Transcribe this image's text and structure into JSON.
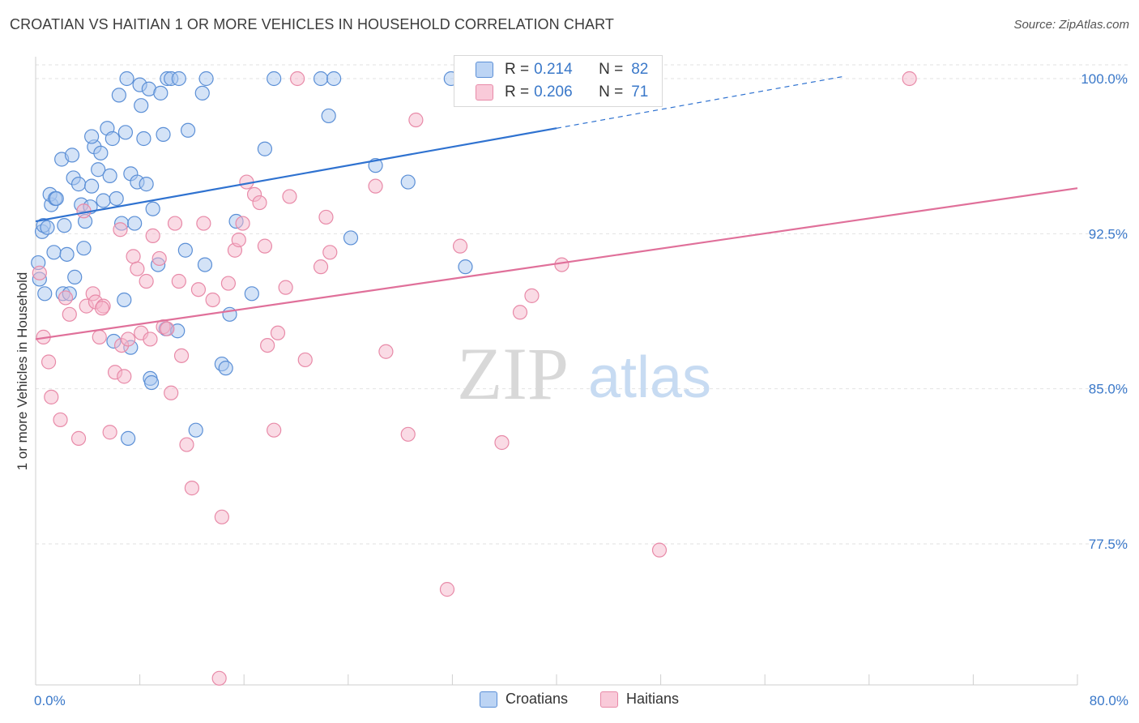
{
  "title": "CROATIAN VS HAITIAN 1 OR MORE VEHICLES IN HOUSEHOLD CORRELATION CHART",
  "source": "Source: ZipAtlas.com",
  "watermark": {
    "zip": "ZIP",
    "atlas": "atlas"
  },
  "legend": {
    "rows": [
      {
        "r_label": "R =",
        "r_value": "0.214",
        "n_label": "N =",
        "n_value": "82"
      },
      {
        "r_label": "R =",
        "r_value": "0.206",
        "n_label": "N =",
        "n_value": "71"
      }
    ]
  },
  "colors": {
    "croatian_fill": "#a9c8f0",
    "croatian_stroke": "#5b8fd6",
    "croatian_line": "#2f72d0",
    "haitian_fill": "#f6b8cc",
    "haitian_stroke": "#e88aa8",
    "haitian_line": "#e0709a",
    "tick_label": "#3a78c9",
    "grid": "#e2e2e2"
  },
  "chart_data": {
    "type": "scatter",
    "title": "CROATIAN VS HAITIAN 1 OR MORE VEHICLES IN HOUSEHOLD CORRELATION CHART",
    "xlabel": "",
    "ylabel": "1 or more Vehicles in Household",
    "xlim": [
      0,
      80
    ],
    "ylim": [
      71.5,
      101
    ],
    "x_tick_labels": [
      "0.0%",
      "80.0%"
    ],
    "y_ticks": [
      77.5,
      85.0,
      92.5,
      100.0
    ],
    "y_tick_labels": [
      "77.5%",
      "85.0%",
      "92.5%",
      "100.0%"
    ],
    "grid": true,
    "legend_position": "bottom",
    "series": [
      {
        "name": "Croatians",
        "r": 0.214,
        "n": 82,
        "trend": {
          "x0": 0,
          "y0": 93.1,
          "x1": 40,
          "y1": 97.6,
          "dashed_to_x": 62,
          "dashed_to_y": 100.1
        },
        "points": [
          [
            0.3,
            90.3
          ],
          [
            0.2,
            91.1
          ],
          [
            0.5,
            92.6
          ],
          [
            0.6,
            92.9
          ],
          [
            0.9,
            92.8
          ],
          [
            1.2,
            93.9
          ],
          [
            1.1,
            94.4
          ],
          [
            1.5,
            94.2
          ],
          [
            1.4,
            91.6
          ],
          [
            2.0,
            96.1
          ],
          [
            2.2,
            92.9
          ],
          [
            2.4,
            91.5
          ],
          [
            2.8,
            96.3
          ],
          [
            2.9,
            95.2
          ],
          [
            3.3,
            94.9
          ],
          [
            3.5,
            93.9
          ],
          [
            3.7,
            91.8
          ],
          [
            3.8,
            93.1
          ],
          [
            2.1,
            89.6
          ],
          [
            2.6,
            89.6
          ],
          [
            4.3,
            94.8
          ],
          [
            4.2,
            93.8
          ],
          [
            4.5,
            96.7
          ],
          [
            4.8,
            95.6
          ],
          [
            5.0,
            96.4
          ],
          [
            5.2,
            94.1
          ],
          [
            5.5,
            97.6
          ],
          [
            5.7,
            95.3
          ],
          [
            5.9,
            97.1
          ],
          [
            6.2,
            94.2
          ],
          [
            6.4,
            99.2
          ],
          [
            6.6,
            93.0
          ],
          [
            6.9,
            97.4
          ],
          [
            7.0,
            100.0
          ],
          [
            7.3,
            95.4
          ],
          [
            7.6,
            93.0
          ],
          [
            7.8,
            95.0
          ],
          [
            8.0,
            99.7
          ],
          [
            8.1,
            98.7
          ],
          [
            8.3,
            97.1
          ],
          [
            8.5,
            94.9
          ],
          [
            8.7,
            99.5
          ],
          [
            9.0,
            93.7
          ],
          [
            9.4,
            91.0
          ],
          [
            9.6,
            99.3
          ],
          [
            9.8,
            97.3
          ],
          [
            10.1,
            100.0
          ],
          [
            10.4,
            100.0
          ],
          [
            11.0,
            100.0
          ],
          [
            11.7,
            97.5
          ],
          [
            11.5,
            91.7
          ],
          [
            12.8,
            99.3
          ],
          [
            13.1,
            100.0
          ],
          [
            13.0,
            91.0
          ],
          [
            14.3,
            86.2
          ],
          [
            14.6,
            86.0
          ],
          [
            15.4,
            93.1
          ],
          [
            16.6,
            89.6
          ],
          [
            17.6,
            96.6
          ],
          [
            18.3,
            100.0
          ],
          [
            21.9,
            100.0
          ],
          [
            22.5,
            98.2
          ],
          [
            22.9,
            100.0
          ],
          [
            24.2,
            92.3
          ],
          [
            26.1,
            95.8
          ],
          [
            28.6,
            95.0
          ],
          [
            31.9,
            100.0
          ],
          [
            33.0,
            90.9
          ],
          [
            6.0,
            87.3
          ],
          [
            7.3,
            87.0
          ],
          [
            8.8,
            85.5
          ],
          [
            8.9,
            85.3
          ],
          [
            10.0,
            87.9
          ],
          [
            12.3,
            83.0
          ],
          [
            7.1,
            82.6
          ],
          [
            4.3,
            97.2
          ],
          [
            3.0,
            90.4
          ],
          [
            1.6,
            94.2
          ],
          [
            0.7,
            89.6
          ],
          [
            10.9,
            87.8
          ],
          [
            6.8,
            89.3
          ],
          [
            14.9,
            88.6
          ]
        ]
      },
      {
        "name": "Haitians",
        "r": 0.206,
        "n": 71,
        "trend": {
          "x0": 0,
          "y0": 87.4,
          "x1": 80,
          "y1": 94.7
        },
        "points": [
          [
            0.3,
            90.6
          ],
          [
            0.6,
            87.5
          ],
          [
            1.0,
            86.3
          ],
          [
            1.2,
            84.6
          ],
          [
            1.9,
            83.5
          ],
          [
            2.3,
            89.4
          ],
          [
            2.6,
            88.6
          ],
          [
            3.3,
            82.6
          ],
          [
            3.7,
            93.6
          ],
          [
            3.9,
            89.0
          ],
          [
            4.4,
            89.6
          ],
          [
            4.6,
            89.2
          ],
          [
            4.9,
            87.5
          ],
          [
            5.2,
            89.0
          ],
          [
            5.7,
            82.9
          ],
          [
            6.1,
            85.8
          ],
          [
            6.5,
            92.7
          ],
          [
            6.6,
            87.1
          ],
          [
            7.1,
            87.4
          ],
          [
            7.5,
            91.4
          ],
          [
            7.8,
            90.8
          ],
          [
            8.1,
            87.7
          ],
          [
            8.5,
            90.2
          ],
          [
            8.8,
            87.4
          ],
          [
            9.0,
            92.4
          ],
          [
            9.5,
            91.3
          ],
          [
            9.8,
            88.0
          ],
          [
            10.1,
            87.9
          ],
          [
            10.4,
            84.8
          ],
          [
            10.7,
            93.0
          ],
          [
            11.0,
            90.2
          ],
          [
            11.2,
            86.6
          ],
          [
            11.6,
            82.3
          ],
          [
            12.0,
            80.2
          ],
          [
            12.5,
            89.8
          ],
          [
            12.9,
            93.0
          ],
          [
            13.6,
            89.3
          ],
          [
            14.3,
            78.8
          ],
          [
            14.8,
            90.1
          ],
          [
            15.3,
            91.7
          ],
          [
            15.6,
            92.2
          ],
          [
            15.9,
            93.0
          ],
          [
            16.2,
            95.0
          ],
          [
            16.8,
            94.4
          ],
          [
            17.2,
            94.0
          ],
          [
            17.6,
            91.9
          ],
          [
            17.8,
            87.1
          ],
          [
            18.3,
            83.0
          ],
          [
            18.6,
            87.7
          ],
          [
            19.2,
            89.9
          ],
          [
            19.5,
            94.3
          ],
          [
            20.7,
            86.4
          ],
          [
            21.9,
            90.9
          ],
          [
            22.3,
            93.3
          ],
          [
            22.6,
            91.6
          ],
          [
            20.1,
            100.0
          ],
          [
            26.1,
            94.8
          ],
          [
            26.9,
            86.8
          ],
          [
            28.6,
            82.8
          ],
          [
            29.2,
            98.0
          ],
          [
            31.6,
            75.3
          ],
          [
            32.6,
            91.9
          ],
          [
            35.8,
            82.4
          ],
          [
            37.2,
            88.7
          ],
          [
            38.1,
            89.5
          ],
          [
            40.4,
            91.0
          ],
          [
            47.9,
            77.2
          ],
          [
            67.1,
            100.0
          ],
          [
            14.1,
            71.0
          ],
          [
            6.8,
            85.6
          ],
          [
            5.1,
            88.9
          ]
        ]
      }
    ]
  },
  "bottom_legend": {
    "items": [
      "Croatians",
      "Haitians"
    ]
  }
}
